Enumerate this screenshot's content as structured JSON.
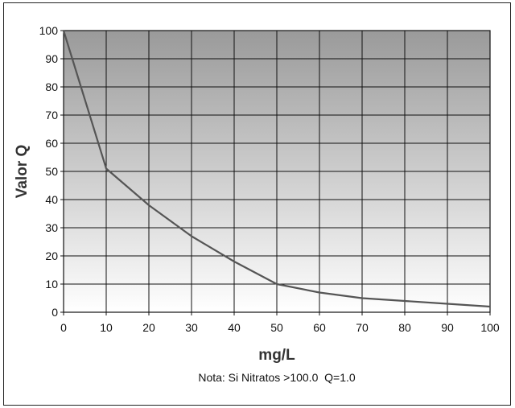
{
  "chart_data": {
    "type": "line",
    "xlabel": "mg/L",
    "ylabel": "Valor Q",
    "note": "Nota: Si Nitratos >100.0  Q=1.0",
    "xlim": [
      0,
      100
    ],
    "ylim": [
      0,
      100
    ],
    "x_ticks": [
      "0",
      "10",
      "20",
      "30",
      "40",
      "50",
      "60",
      "70",
      "80",
      "90",
      "100"
    ],
    "y_ticks": [
      "0",
      "10",
      "20",
      "30",
      "40",
      "50",
      "60",
      "70",
      "80",
      "90",
      "100"
    ],
    "grid": true,
    "series": [
      {
        "x": [
          0,
          10,
          20,
          30,
          40,
          50,
          60,
          70,
          80,
          90,
          100
        ],
        "y": [
          100,
          51,
          38,
          27,
          18,
          10,
          7,
          5,
          4,
          3,
          2
        ]
      }
    ],
    "colors": {
      "line": "#555555",
      "grid": "#111111",
      "background_top": "#9a9a9a",
      "background_bottom": "#ffffff"
    }
  }
}
